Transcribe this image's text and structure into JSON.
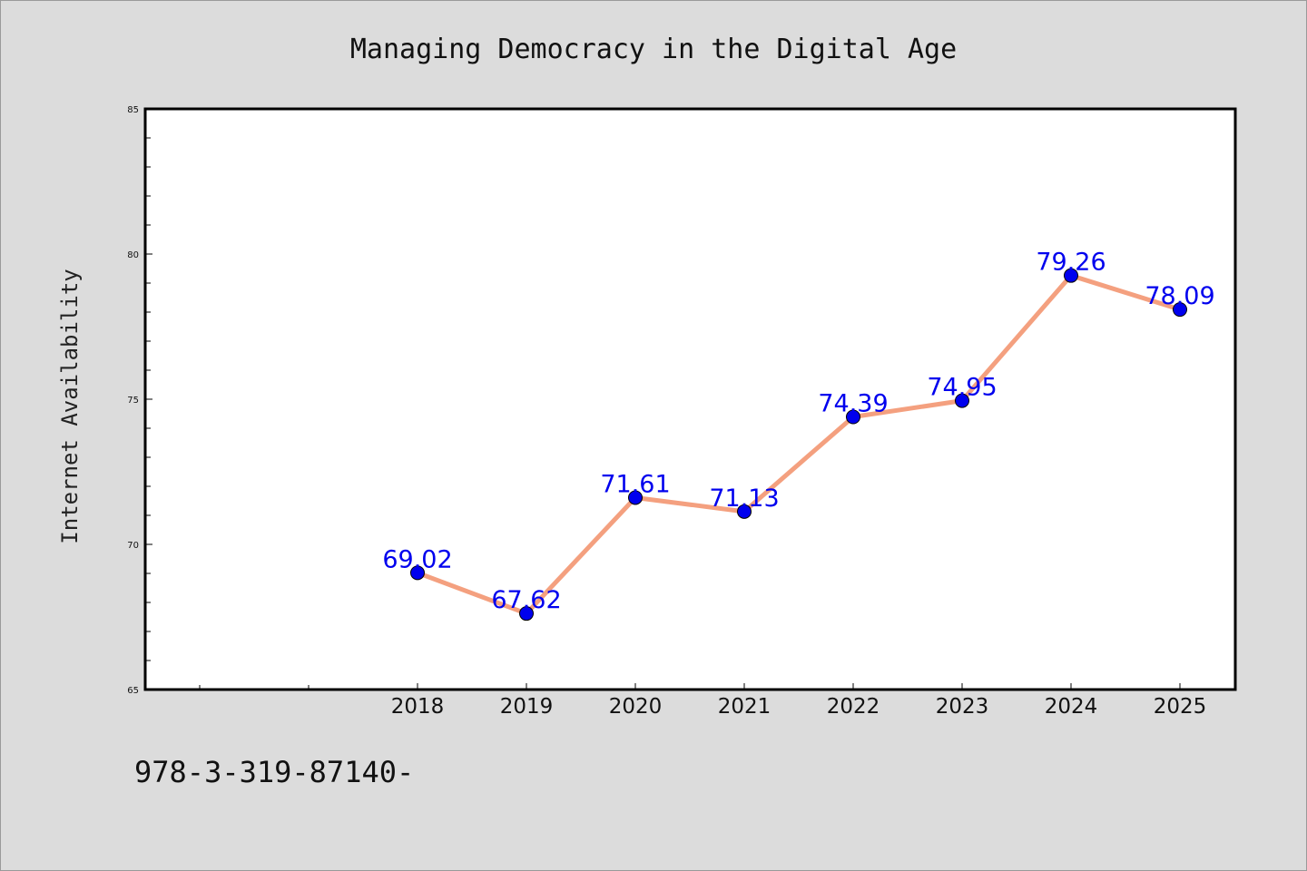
{
  "chart_data": {
    "type": "line",
    "title": "Managing Democracy in the Digital Age",
    "xlabel": "",
    "ylabel": "Internet Availability",
    "categories": [
      "2018",
      "2019",
      "2020",
      "2021",
      "2022",
      "2023",
      "2024",
      "2025"
    ],
    "series": [
      {
        "values": [
          69.02,
          67.62,
          71.61,
          71.13,
          74.39,
          74.95,
          79.26,
          78.09
        ],
        "labels": [
          "69.02",
          "67.62",
          "71.61",
          "71.13",
          "74.39",
          "74.95",
          "79.26",
          "78.09"
        ]
      }
    ],
    "ylim": [
      65,
      85
    ],
    "yticks": [
      "65",
      "70",
      "75",
      "80",
      "85"
    ],
    "grid": false,
    "legend": false,
    "colors": {
      "line": "#f4a07f",
      "marker": "#0000ee",
      "label": "#0000ee",
      "plot_background": "#ffffff",
      "page_background": "#dcdcdc"
    }
  },
  "footer": {
    "code": "978-3-319-87140-"
  }
}
